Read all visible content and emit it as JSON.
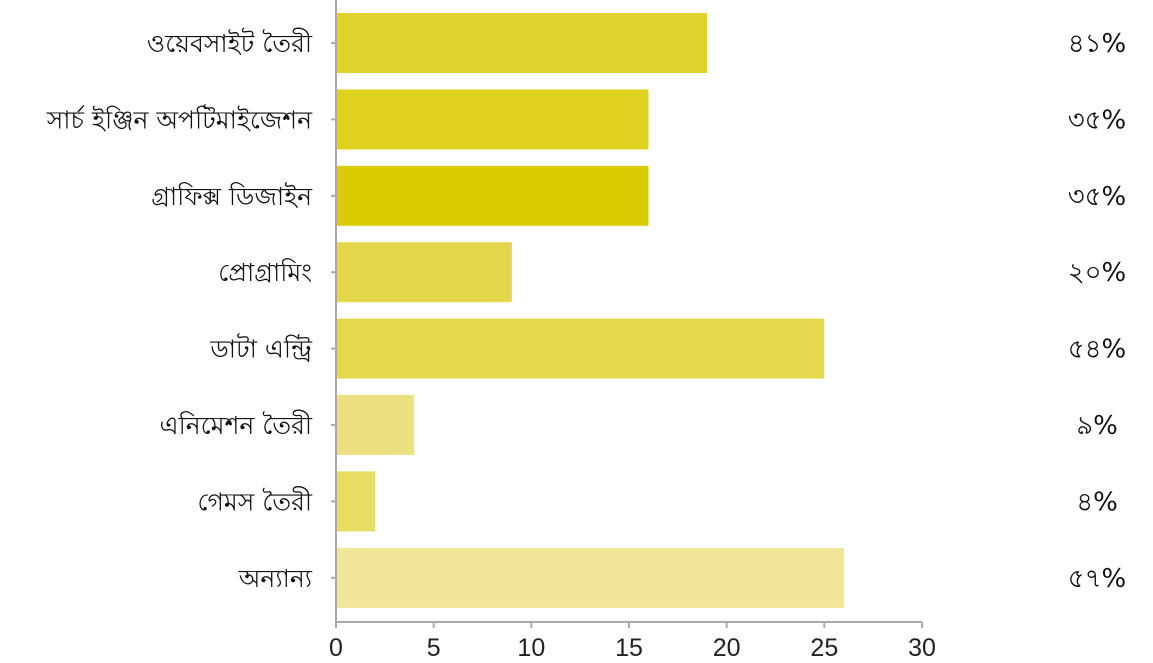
{
  "chart_data": {
    "type": "bar",
    "orientation": "horizontal",
    "categories": [
      "ওয়েবসাইট তৈরী",
      "সার্চ ইঞ্জিন অপটিমাইজেশন",
      "গ্রাফিক্স ডিজাইন",
      "প্রোগ্রামিং",
      "ডাটা এন্ট্রি",
      "এনিমেশন তৈরী",
      "গেমস তৈরী",
      "অন্যান্য"
    ],
    "values": [
      19,
      16,
      16,
      9,
      25,
      4,
      2,
      26
    ],
    "percent_labels": [
      "৪১%",
      "৩৫%",
      "৩৫%",
      "২০%",
      "৫৪%",
      "৯%",
      "৪%",
      "৫৭%"
    ],
    "bar_colors": [
      "#e0d22e",
      "#dfd11f",
      "#dacb02",
      "#e4d74b",
      "#e4d84f",
      "#ece082",
      "#e7dc64",
      "#efe697"
    ],
    "xlim": [
      0,
      30
    ],
    "xticks": [
      "0",
      "5",
      "10",
      "15",
      "20",
      "25",
      "30"
    ],
    "grid": false,
    "title": "",
    "xlabel": "",
    "ylabel": ""
  }
}
